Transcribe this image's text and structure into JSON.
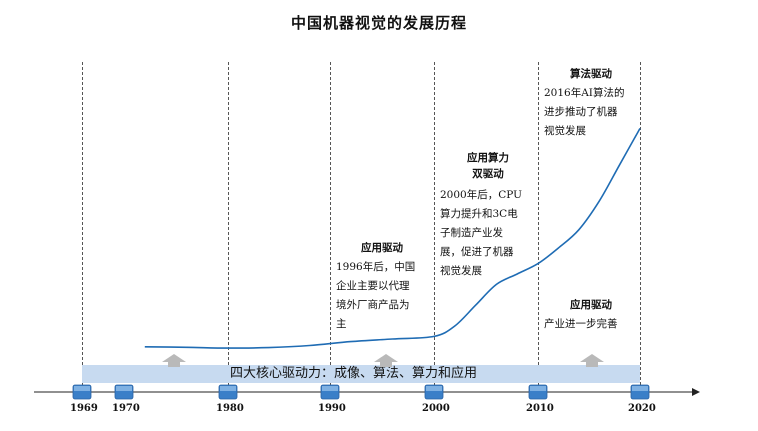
{
  "title": "中国机器视觉的发展历程",
  "timeline": {
    "years": [
      "1969",
      "1970",
      "1980",
      "1990",
      "2000",
      "2010",
      "2020"
    ],
    "driver_band_text": "四大核心驱动力：成像、算法、算力和应用"
  },
  "phases": [
    {
      "head": [
        "应用驱动"
      ],
      "lines": [
        "1996年后，中国",
        "企业主要以代理",
        "境外厂商产品为",
        "主"
      ]
    },
    {
      "head": [
        "应用算力",
        "双驱动"
      ],
      "lines": [
        "2000年后，CPU",
        "算力提升和3C电",
        "子制造产业发",
        "展，促进了机器",
        "视觉发展"
      ]
    },
    {
      "head": [
        "算法驱动"
      ],
      "lines": [
        "2016年AI算法的",
        "进步推动了机器",
        "视觉发展"
      ]
    },
    {
      "head": [
        "应用驱动"
      ],
      "lines": [
        "产业进一步完善"
      ]
    }
  ],
  "chart_data": {
    "type": "line",
    "title": "中国机器视觉的发展历程",
    "x_ticks": [
      "1969",
      "1970",
      "1980",
      "1990",
      "2000",
      "2010",
      "2020"
    ],
    "series": [
      {
        "x": [
          1972,
          1976,
          1980,
          1984,
          1988,
          1992,
          1996,
          2000,
          2002,
          2004,
          2006,
          2008,
          2010,
          2012,
          2014,
          2016,
          2018,
          2020
        ],
        "y": [
          0.02,
          0.018,
          0.015,
          0.017,
          0.025,
          0.04,
          0.05,
          0.06,
          0.1,
          0.18,
          0.26,
          0.3,
          0.34,
          0.4,
          0.47,
          0.58,
          0.72,
          0.86
        ]
      }
    ],
    "color": "#1f6cb4",
    "grid": false
  },
  "colors": {
    "curve": "#1f6cb4",
    "band": "#c7daf0",
    "marker": "#3a7fc8",
    "arrow": "#b9b9b9"
  }
}
